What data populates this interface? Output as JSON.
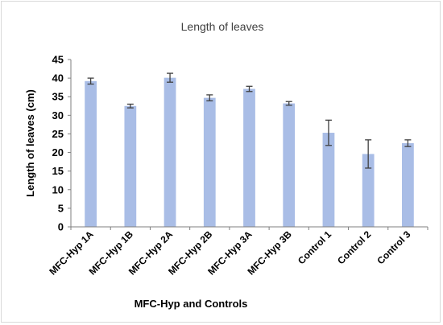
{
  "chart_data": {
    "type": "bar",
    "title": "Length of leaves",
    "xlabel": "MFC-Hyp and Controls",
    "ylabel": "Length of leaves (cm)",
    "categories": [
      "MFC-Hyp 1A",
      "MFC-Hyp 1B",
      "MFC-Hyp 2A",
      "MFC-Hyp 2B",
      "MFC-Hyp 3A",
      "MFC-Hyp 3B",
      "Control 1",
      "Control 2",
      "Control 3"
    ],
    "values": [
      39.2,
      32.5,
      40.1,
      34.7,
      37.1,
      33.2,
      25.3,
      19.6,
      22.5
    ],
    "errors": [
      0.8,
      0.5,
      1.2,
      0.8,
      0.7,
      0.5,
      3.4,
      3.8,
      0.9
    ],
    "ylim": [
      0,
      45
    ],
    "yticks": [
      0,
      5,
      10,
      15,
      20,
      25,
      30,
      35,
      40,
      45
    ],
    "grid": false,
    "colors": {
      "bar": "#a9bde6",
      "error_bar": "#404040",
      "axis": "#7f7f7f"
    }
  }
}
